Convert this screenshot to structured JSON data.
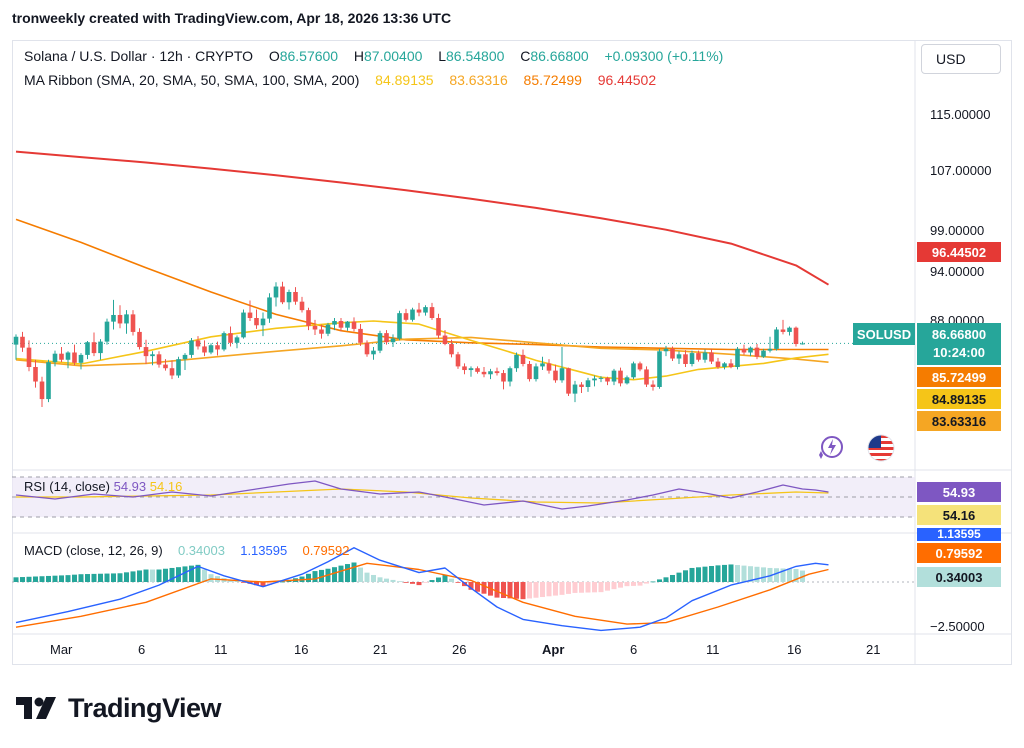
{
  "header": {
    "attribution": "tronweekly created with TradingView.com, Apr 18, 2026 13:36 UTC"
  },
  "legend": {
    "symbol": "Solana / U.S. Dollar · 12h · CRYPTO",
    "o_label": "O",
    "o": "86.57600",
    "h_label": "H",
    "h": "87.00400",
    "l_label": "L",
    "l": "86.54800",
    "c_label": "C",
    "c": "86.66800",
    "change": "+0.09300 (+0.11%)",
    "ma_ribbon": "MA Ribbon (SMA, 20, SMA, 50, SMA, 100, SMA, 200)",
    "ma_vals": [
      "84.89135",
      "83.63316",
      "85.72499",
      "96.44502"
    ],
    "rsi": "RSI (14, close)",
    "rsi_vals": [
      "54.93",
      "54.16"
    ],
    "macd": "MACD (close, 12, 26, 9)",
    "macd_vals": [
      "0.34003",
      "1.13595",
      "0.79592"
    ]
  },
  "currency_button": "USD",
  "price_axis": {
    "ticks": [
      "115.00000",
      "107.00000",
      "99.00000",
      "94.00000",
      "88.00000"
    ],
    "tags": {
      "ma200": "96.44502",
      "last": "86.66800",
      "countdown": "10:24:00",
      "ma100": "85.72499",
      "ma20": "84.89135",
      "ma50": "83.63316",
      "rsi": "54.93",
      "rsi_ma": "54.16",
      "macd_top": "1.13595",
      "macd_signal": "0.79592",
      "macd_hist": "0.34003",
      "macd_tick": "−2.50000"
    }
  },
  "symbol_tag": "SOLUSD",
  "time_axis": [
    "Mar",
    "6",
    "11",
    "16",
    "21",
    "26",
    "Apr",
    "6",
    "11",
    "16",
    "21"
  ],
  "logo_text": "TradingView",
  "colors": {
    "up": "#26a69a",
    "down": "#ef5350",
    "ma20": "#f5c518",
    "ma50": "#f5a623",
    "ma100": "#f57c00",
    "ma200": "#e53935",
    "rsi": "#7e57c2",
    "macd": "#2962ff",
    "signal": "#ff6d00"
  },
  "chart_data": {
    "type": "candlestick",
    "interval": "12h",
    "ohlc": [
      [
        86.5,
        88.2,
        84.0,
        87.8
      ],
      [
        87.8,
        88.6,
        85.3,
        86.0
      ],
      [
        86.0,
        87.2,
        82.1,
        82.8
      ],
      [
        82.8,
        84.0,
        79.4,
        80.4
      ],
      [
        80.4,
        81.2,
        76.2,
        77.5
      ],
      [
        77.5,
        84.0,
        77.0,
        83.6
      ],
      [
        83.6,
        85.5,
        82.9,
        85.0
      ],
      [
        85.0,
        86.1,
        83.6,
        84.0
      ],
      [
        84.0,
        85.4,
        82.6,
        85.2
      ],
      [
        85.2,
        86.5,
        83.1,
        83.5
      ],
      [
        83.5,
        85.1,
        82.4,
        84.8
      ],
      [
        84.8,
        87.1,
        84.1,
        86.9
      ],
      [
        86.9,
        88.5,
        84.6,
        85.1
      ],
      [
        85.1,
        87.4,
        84.0,
        87.0
      ],
      [
        87.0,
        90.8,
        86.5,
        90.3
      ],
      [
        90.3,
        93.9,
        89.0,
        91.4
      ],
      [
        91.4,
        93.0,
        89.2,
        90.0
      ],
      [
        90.0,
        92.2,
        88.3,
        91.5
      ],
      [
        91.5,
        92.2,
        88.0,
        88.6
      ],
      [
        88.6,
        89.2,
        85.7,
        86.1
      ],
      [
        86.1,
        87.3,
        83.3,
        84.6
      ],
      [
        84.6,
        85.4,
        83.1,
        84.9
      ],
      [
        84.9,
        85.4,
        82.7,
        83.2
      ],
      [
        83.2,
        84.1,
        82.2,
        82.6
      ],
      [
        82.6,
        83.9,
        80.8,
        81.4
      ],
      [
        81.4,
        84.5,
        81.0,
        84.1
      ],
      [
        84.1,
        85.1,
        82.3,
        84.8
      ],
      [
        84.8,
        87.6,
        84.3,
        87.2
      ],
      [
        87.2,
        87.9,
        85.7,
        86.2
      ],
      [
        86.2,
        87.2,
        84.6,
        85.2
      ],
      [
        85.2,
        86.7,
        84.9,
        86.4
      ],
      [
        86.4,
        87.0,
        84.7,
        85.7
      ],
      [
        85.7,
        88.7,
        85.4,
        88.4
      ],
      [
        88.4,
        89.5,
        86.2,
        86.8
      ],
      [
        86.8,
        88.0,
        85.9,
        87.7
      ],
      [
        87.7,
        92.3,
        87.5,
        91.8
      ],
      [
        91.8,
        93.8,
        90.4,
        90.9
      ],
      [
        90.9,
        92.3,
        89.1,
        89.7
      ],
      [
        89.7,
        91.8,
        87.9,
        90.8
      ],
      [
        90.8,
        95.0,
        90.1,
        94.3
      ],
      [
        94.3,
        96.8,
        92.8,
        96.1
      ],
      [
        96.1,
        96.9,
        93.2,
        93.5
      ],
      [
        93.5,
        95.6,
        92.3,
        95.2
      ],
      [
        95.2,
        96.0,
        93.1,
        93.6
      ],
      [
        93.6,
        94.4,
        91.8,
        92.2
      ],
      [
        92.2,
        92.6,
        88.9,
        89.6
      ],
      [
        89.6,
        90.6,
        88.1,
        89.0
      ],
      [
        89.0,
        89.8,
        87.5,
        88.3
      ],
      [
        88.3,
        90.1,
        87.9,
        89.8
      ],
      [
        89.8,
        90.9,
        88.9,
        90.4
      ],
      [
        90.4,
        90.9,
        88.7,
        89.3
      ],
      [
        89.3,
        90.4,
        88.8,
        90.3
      ],
      [
        90.3,
        91.0,
        88.7,
        89.1
      ],
      [
        89.1,
        89.9,
        86.3,
        86.8
      ],
      [
        86.8,
        87.2,
        84.5,
        84.9
      ],
      [
        84.9,
        86.1,
        84.0,
        85.5
      ],
      [
        85.5,
        88.8,
        85.1,
        88.4
      ],
      [
        88.4,
        88.9,
        86.5,
        86.9
      ],
      [
        86.9,
        88.2,
        86.1,
        87.5
      ],
      [
        87.5,
        92.1,
        87.2,
        91.7
      ],
      [
        91.7,
        92.4,
        90.3,
        90.6
      ],
      [
        90.6,
        92.6,
        90.3,
        92.3
      ],
      [
        92.3,
        93.4,
        91.2,
        91.8
      ],
      [
        91.8,
        93.0,
        91.3,
        92.7
      ],
      [
        92.7,
        93.4,
        90.6,
        90.9
      ],
      [
        90.9,
        91.6,
        87.5,
        88.0
      ],
      [
        88.0,
        88.9,
        86.4,
        86.6
      ],
      [
        86.6,
        87.3,
        84.4,
        84.9
      ],
      [
        84.9,
        85.3,
        82.5,
        82.9
      ],
      [
        82.9,
        83.4,
        81.6,
        82.3
      ],
      [
        82.3,
        82.9,
        81.2,
        82.6
      ],
      [
        82.6,
        82.9,
        81.7,
        82.0
      ],
      [
        82.0,
        82.8,
        81.1,
        81.6
      ],
      [
        81.6,
        82.5,
        80.8,
        82.1
      ],
      [
        82.1,
        82.7,
        81.4,
        81.8
      ],
      [
        81.8,
        82.3,
        79.1,
        80.4
      ],
      [
        80.4,
        82.9,
        79.6,
        82.6
      ],
      [
        82.6,
        85.2,
        82.0,
        84.8
      ],
      [
        84.8,
        85.7,
        82.9,
        83.3
      ],
      [
        83.3,
        83.8,
        80.4,
        80.8
      ],
      [
        80.8,
        83.4,
        80.4,
        82.9
      ],
      [
        82.9,
        84.5,
        82.3,
        83.4
      ],
      [
        83.4,
        84.1,
        81.7,
        82.2
      ],
      [
        82.2,
        83.2,
        80.2,
        80.6
      ],
      [
        80.6,
        86.1,
        80.2,
        82.6
      ],
      [
        82.6,
        82.7,
        78.0,
        78.4
      ],
      [
        78.4,
        80.5,
        77.0,
        79.9
      ],
      [
        79.9,
        80.3,
        78.5,
        79.5
      ],
      [
        79.5,
        81.0,
        78.7,
        80.6
      ],
      [
        80.6,
        81.4,
        79.6,
        80.9
      ],
      [
        80.9,
        81.3,
        80.3,
        81.0
      ],
      [
        81.0,
        81.2,
        79.8,
        80.4
      ],
      [
        80.4,
        82.5,
        79.8,
        82.2
      ],
      [
        82.2,
        82.7,
        79.6,
        80.1
      ],
      [
        80.1,
        81.4,
        79.9,
        81.1
      ],
      [
        81.1,
        83.7,
        80.8,
        83.4
      ],
      [
        83.4,
        83.7,
        82.1,
        82.4
      ],
      [
        82.4,
        82.9,
        79.5,
        79.9
      ],
      [
        79.9,
        80.6,
        78.9,
        79.5
      ],
      [
        79.5,
        85.8,
        79.2,
        85.4
      ],
      [
        85.4,
        86.3,
        84.6,
        85.8
      ],
      [
        85.8,
        86.2,
        83.8,
        84.2
      ],
      [
        84.2,
        85.4,
        83.3,
        84.9
      ],
      [
        84.9,
        85.6,
        82.8,
        83.3
      ],
      [
        83.3,
        85.5,
        82.9,
        85.1
      ],
      [
        85.1,
        85.5,
        83.7,
        84.0
      ],
      [
        84.0,
        85.7,
        83.5,
        85.2
      ],
      [
        85.2,
        85.8,
        83.3,
        83.7
      ],
      [
        83.7,
        84.3,
        82.5,
        82.8
      ],
      [
        82.8,
        83.6,
        82.4,
        83.4
      ],
      [
        83.4,
        84.1,
        82.6,
        82.8
      ],
      [
        82.8,
        86.1,
        82.4,
        85.8
      ],
      [
        85.8,
        86.5,
        84.8,
        85.2
      ],
      [
        85.2,
        86.2,
        84.6,
        86.0
      ],
      [
        86.0,
        86.6,
        84.1,
        84.5
      ],
      [
        84.5,
        85.8,
        84.3,
        85.5
      ],
      [
        85.5,
        87.8,
        85.2,
        85.8
      ],
      [
        85.8,
        89.4,
        85.5,
        89.0
      ],
      [
        89.0,
        90.6,
        88.2,
        88.6
      ],
      [
        88.6,
        89.5,
        88.0,
        89.3
      ],
      [
        89.3,
        89.5,
        86.2,
        86.6
      ],
      [
        86.6,
        87.0,
        86.5,
        86.7
      ]
    ],
    "ma20": [
      [
        0,
        84.2
      ],
      [
        10,
        83.3
      ],
      [
        20,
        85.4
      ],
      [
        30,
        87.8
      ],
      [
        40,
        89.2
      ],
      [
        50,
        90.1
      ],
      [
        55,
        90.4
      ],
      [
        62,
        89.9
      ],
      [
        70,
        87.2
      ],
      [
        75,
        85.6
      ],
      [
        80,
        83.9
      ],
      [
        85,
        82.5
      ],
      [
        90,
        81.1
      ],
      [
        95,
        80.7
      ],
      [
        100,
        81.3
      ],
      [
        105,
        82.4
      ],
      [
        110,
        82.9
      ],
      [
        115,
        83.4
      ],
      [
        120,
        84.3
      ],
      [
        125,
        84.9
      ]
    ],
    "ma50": [
      [
        0,
        84.0
      ],
      [
        10,
        83.0
      ],
      [
        20,
        83.4
      ],
      [
        30,
        84.4
      ],
      [
        40,
        85.4
      ],
      [
        50,
        86.3
      ],
      [
        60,
        87.4
      ],
      [
        70,
        87.7
      ],
      [
        80,
        86.8
      ],
      [
        90,
        85.9
      ],
      [
        100,
        85.6
      ],
      [
        110,
        84.9
      ],
      [
        120,
        84.1
      ],
      [
        125,
        83.6
      ]
    ],
    "ma100": [
      [
        0,
        107.2
      ],
      [
        10,
        103.4
      ],
      [
        20,
        99.2
      ],
      [
        30,
        95.2
      ],
      [
        40,
        91.5
      ],
      [
        50,
        88.8
      ],
      [
        60,
        87.3
      ],
      [
        70,
        86.8
      ],
      [
        80,
        86.5
      ],
      [
        90,
        86.1
      ],
      [
        100,
        85.9
      ],
      [
        110,
        85.7
      ],
      [
        120,
        85.7
      ],
      [
        125,
        85.7
      ]
    ],
    "ma200": [
      [
        0,
        118.4
      ],
      [
        10,
        117.5
      ],
      [
        20,
        116.6
      ],
      [
        30,
        115.6
      ],
      [
        40,
        114.5
      ],
      [
        50,
        113.3
      ],
      [
        60,
        112.0
      ],
      [
        70,
        110.6
      ],
      [
        80,
        109.1
      ],
      [
        90,
        107.4
      ],
      [
        100,
        105.5
      ],
      [
        110,
        103.2
      ],
      [
        120,
        99.6
      ],
      [
        125,
        96.4
      ]
    ],
    "rsi": [
      [
        0,
        52
      ],
      [
        6,
        48
      ],
      [
        12,
        53
      ],
      [
        18,
        50
      ],
      [
        24,
        55
      ],
      [
        30,
        51
      ],
      [
        36,
        57
      ],
      [
        42,
        63
      ],
      [
        46,
        66
      ],
      [
        50,
        58
      ],
      [
        56,
        53
      ],
      [
        62,
        55
      ],
      [
        66,
        50
      ],
      [
        72,
        42
      ],
      [
        78,
        46
      ],
      [
        84,
        38
      ],
      [
        88,
        41
      ],
      [
        94,
        47
      ],
      [
        98,
        52
      ],
      [
        102,
        58
      ],
      [
        106,
        54
      ],
      [
        110,
        49
      ],
      [
        114,
        55
      ],
      [
        118,
        62
      ],
      [
        121,
        58
      ],
      [
        123,
        57
      ],
      [
        125,
        55
      ]
    ],
    "rsi_ma": [
      [
        0,
        50
      ],
      [
        10,
        50
      ],
      [
        20,
        51
      ],
      [
        30,
        52
      ],
      [
        40,
        55
      ],
      [
        50,
        58
      ],
      [
        60,
        55
      ],
      [
        70,
        49
      ],
      [
        80,
        45
      ],
      [
        90,
        44
      ],
      [
        100,
        48
      ],
      [
        110,
        52
      ],
      [
        120,
        55
      ],
      [
        125,
        54
      ]
    ],
    "rsi_levels": [
      70,
      50,
      30
    ],
    "macd": [
      [
        0,
        -2.6
      ],
      [
        8,
        -1.9
      ],
      [
        16,
        -1.1
      ],
      [
        22,
        -0.2
      ],
      [
        28,
        1.0
      ],
      [
        32,
        0.4
      ],
      [
        38,
        -0.3
      ],
      [
        44,
        0.5
      ],
      [
        48,
        1.3
      ],
      [
        52,
        2.2
      ],
      [
        56,
        1.4
      ],
      [
        62,
        0.6
      ],
      [
        66,
        0.9
      ],
      [
        70,
        -0.4
      ],
      [
        74,
        -1.6
      ],
      [
        78,
        -2.4
      ],
      [
        84,
        -2.8
      ],
      [
        90,
        -3.1
      ],
      [
        96,
        -2.9
      ],
      [
        100,
        -2.3
      ],
      [
        104,
        -1.2
      ],
      [
        110,
        -0.2
      ],
      [
        116,
        0.4
      ],
      [
        120,
        1.0
      ],
      [
        123,
        1.2
      ],
      [
        125,
        1.1
      ]
    ],
    "signal": [
      [
        0,
        -2.9
      ],
      [
        10,
        -2.2
      ],
      [
        20,
        -1.3
      ],
      [
        30,
        0.2
      ],
      [
        38,
        0.0
      ],
      [
        46,
        0.2
      ],
      [
        54,
        1.2
      ],
      [
        62,
        0.8
      ],
      [
        70,
        0.1
      ],
      [
        78,
        -1.3
      ],
      [
        86,
        -2.2
      ],
      [
        94,
        -2.7
      ],
      [
        100,
        -2.6
      ],
      [
        108,
        -1.6
      ],
      [
        116,
        -0.5
      ],
      [
        122,
        0.5
      ],
      [
        125,
        0.8
      ]
    ],
    "ylim": [
      74,
      122
    ]
  }
}
